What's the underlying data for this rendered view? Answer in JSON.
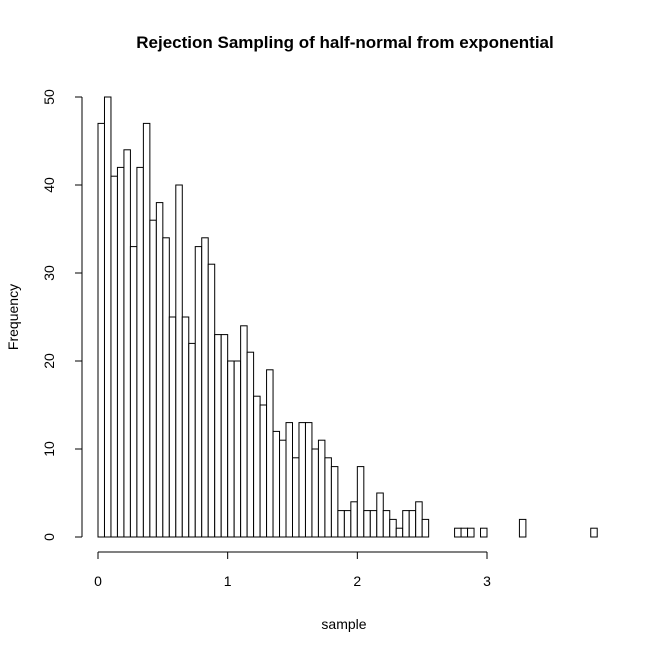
{
  "chart_data": {
    "type": "bar",
    "title": "Rejection Sampling of half-normal from exponential",
    "xlabel": "sample",
    "ylabel": "Frequency",
    "bin_width": 0.05,
    "bin_start": 0.0,
    "values": [
      47,
      50,
      41,
      42,
      44,
      33,
      42,
      47,
      36,
      38,
      34,
      25,
      40,
      25,
      22,
      33,
      34,
      31,
      23,
      23,
      20,
      20,
      24,
      21,
      16,
      15,
      19,
      12,
      11,
      13,
      9,
      13,
      13,
      10,
      11,
      9,
      8,
      3,
      3,
      4,
      8,
      3,
      3,
      5,
      3,
      2,
      1,
      3,
      3,
      4,
      2,
      0,
      0,
      0,
      0,
      1,
      1,
      1,
      0,
      1,
      0,
      0,
      0,
      0,
      0,
      2,
      0,
      0,
      0,
      0,
      0,
      0,
      0,
      0,
      0,
      0,
      1
    ],
    "xticks": [
      0,
      1,
      2,
      3
    ],
    "yticks": [
      0,
      10,
      20,
      30,
      40,
      50
    ],
    "xlim": [
      0,
      3.8
    ],
    "ylim": [
      0,
      50
    ],
    "grid": false,
    "legend": "none"
  }
}
